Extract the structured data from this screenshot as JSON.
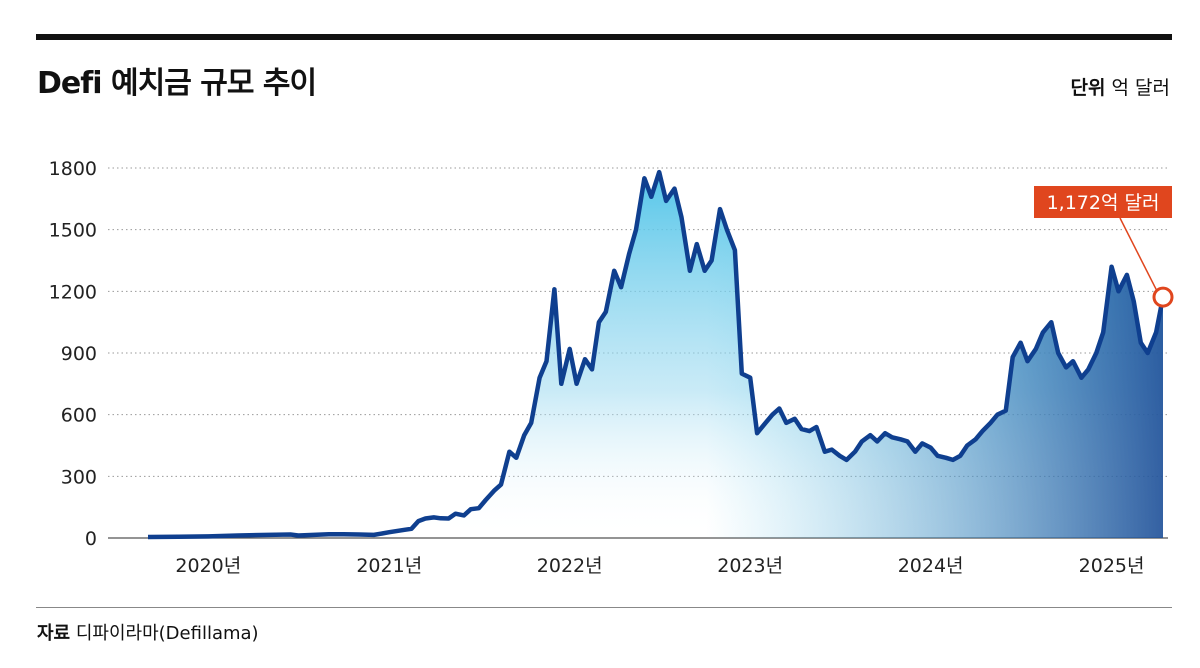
{
  "title": "Defi 예치금 규모 추이",
  "unit": {
    "label": "단위",
    "value": "억 달러"
  },
  "source": {
    "label": "자료",
    "value": "디파이라마(Defillama)"
  },
  "colors": {
    "line": "#0f3f8f",
    "area_top": "#4cc3e8",
    "area_right": "#1d4f98",
    "callout": "#e0461e",
    "rule": "#111111",
    "grid": "#888888"
  },
  "chart_data": {
    "type": "area",
    "title": "Defi 예치금 규모 추이",
    "xlabel": "",
    "ylabel": "",
    "unit": "억 달러",
    "ylim": [
      0,
      1800
    ],
    "yticks": [
      0,
      300,
      600,
      900,
      1200,
      1500,
      1800
    ],
    "xticks": [
      "2020년",
      "2021년",
      "2022년",
      "2023년",
      "2024년",
      "2025년"
    ],
    "grid": "horizontal dotted",
    "annotation": {
      "label": "1,172억 달러",
      "date": "2025-03",
      "value": 1172
    },
    "series": [
      {
        "points": [
          [
            "2019-09",
            5
          ],
          [
            "2019-11",
            6
          ],
          [
            "2020-01",
            8
          ],
          [
            "2020-03",
            12
          ],
          [
            "2020-05",
            15
          ],
          [
            "2020-06-15",
            17
          ],
          [
            "2020-07",
            12
          ],
          [
            "2020-08",
            15
          ],
          [
            "2020-09",
            18
          ],
          [
            "2020-10",
            18
          ],
          [
            "2020-11",
            17
          ],
          [
            "2020-12",
            15
          ],
          [
            "2021-01",
            28
          ],
          [
            "2021-02",
            40
          ],
          [
            "2021-02-15",
            45
          ],
          [
            "2021-03",
            82
          ],
          [
            "2021-03-15",
            95
          ],
          [
            "2021-04",
            100
          ],
          [
            "2021-04-15",
            96
          ],
          [
            "2021-05",
            95
          ],
          [
            "2021-05-15",
            118
          ],
          [
            "2021-06",
            110
          ],
          [
            "2021-06-15",
            140
          ],
          [
            "2021-07",
            145
          ],
          [
            "2021-07-15",
            185
          ],
          [
            "2021-08",
            230
          ],
          [
            "2021-08-15",
            260
          ],
          [
            "2021-09",
            420
          ],
          [
            "2021-09-15",
            390
          ],
          [
            "2021-10",
            500
          ],
          [
            "2021-10-15",
            560
          ],
          [
            "2021-11",
            780
          ],
          [
            "2021-11-15",
            860
          ],
          [
            "2021-12",
            1210
          ],
          [
            "2021-12-15",
            750
          ],
          [
            "2022-01",
            920
          ],
          [
            "2022-01-15",
            750
          ],
          [
            "2022-02",
            870
          ],
          [
            "2022-02-15",
            820
          ],
          [
            "2022-03",
            1050
          ],
          [
            "2022-03-15",
            1100
          ],
          [
            "2022-04",
            1300
          ],
          [
            "2022-04-15",
            1220
          ],
          [
            "2022-05",
            1380
          ],
          [
            "2022-05-15",
            1500
          ],
          [
            "2022-06",
            1750
          ],
          [
            "2022-06-15",
            1660
          ],
          [
            "2022-07",
            1780
          ],
          [
            "2022-07-15",
            1640
          ],
          [
            "2022-08",
            1700
          ],
          [
            "2022-08-15",
            1560
          ],
          [
            "2022-09",
            1300
          ],
          [
            "2022-09-15",
            1430
          ],
          [
            "2022-10",
            1300
          ],
          [
            "2022-10-15",
            1350
          ],
          [
            "2022-11",
            1600
          ],
          [
            "2022-11-15",
            1500
          ],
          [
            "2022-12",
            1400
          ],
          [
            "2022-12-15",
            800
          ],
          [
            "2023-01",
            780
          ],
          [
            "2023-01-15",
            510
          ],
          [
            "2023-02",
            560
          ],
          [
            "2023-02-15",
            600
          ],
          [
            "2023-03",
            630
          ],
          [
            "2023-03-15",
            560
          ],
          [
            "2023-04",
            580
          ],
          [
            "2023-04-15",
            530
          ],
          [
            "2023-05",
            520
          ],
          [
            "2023-05-15",
            540
          ],
          [
            "2023-06",
            420
          ],
          [
            "2023-06-15",
            430
          ],
          [
            "2023-07",
            400
          ],
          [
            "2023-07-15",
            380
          ],
          [
            "2023-08",
            420
          ],
          [
            "2023-08-15",
            470
          ],
          [
            "2023-09",
            500
          ],
          [
            "2023-09-15",
            470
          ],
          [
            "2023-10",
            510
          ],
          [
            "2023-10-15",
            490
          ],
          [
            "2023-11",
            480
          ],
          [
            "2023-11-15",
            470
          ],
          [
            "2023-12",
            420
          ],
          [
            "2023-12-15",
            460
          ],
          [
            "2024-01",
            440
          ],
          [
            "2024-01-15",
            400
          ],
          [
            "2024-02",
            390
          ],
          [
            "2024-02-15",
            380
          ],
          [
            "2024-03",
            400
          ],
          [
            "2024-03-15",
            450
          ],
          [
            "2024-04",
            480
          ],
          [
            "2024-04-15",
            520
          ],
          [
            "2024-05",
            560
          ],
          [
            "2024-05-15",
            600
          ],
          [
            "2024-06",
            620
          ],
          [
            "2024-06-15",
            880
          ],
          [
            "2024-07",
            950
          ],
          [
            "2024-07-15",
            860
          ],
          [
            "2024-08",
            920
          ],
          [
            "2024-08-15",
            1000
          ],
          [
            "2024-09",
            1050
          ],
          [
            "2024-09-15",
            900
          ],
          [
            "2024-10",
            830
          ],
          [
            "2024-10-15",
            860
          ],
          [
            "2024-11",
            780
          ],
          [
            "2024-11-15",
            820
          ],
          [
            "2024-12",
            900
          ],
          [
            "2024-12-15",
            1000
          ],
          [
            "2025-01",
            1320
          ],
          [
            "2025-01-15",
            1200
          ],
          [
            "2025-02",
            1280
          ],
          [
            "2025-02-15",
            1150
          ],
          [
            "2025-03",
            950
          ],
          [
            "2025-03-15",
            900
          ],
          [
            "2025-04",
            1000
          ],
          [
            "2025-04-15",
            1172
          ]
        ]
      }
    ]
  }
}
